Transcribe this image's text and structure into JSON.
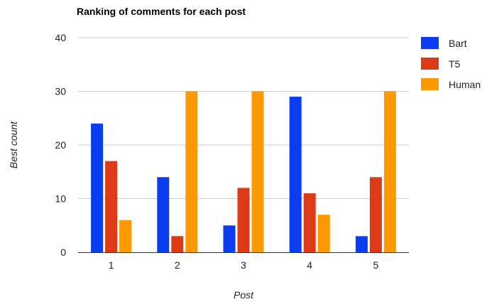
{
  "chart_data": {
    "type": "bar",
    "title": "Ranking of comments for each post",
    "xlabel": "Post",
    "ylabel": "Best count",
    "categories": [
      "1",
      "2",
      "3",
      "4",
      "5"
    ],
    "series": [
      {
        "name": "Bart",
        "color": "#0a3cf0",
        "values": [
          24,
          14,
          5,
          29,
          3
        ]
      },
      {
        "name": "T5",
        "color": "#dd3b17",
        "values": [
          17,
          3,
          12,
          11,
          14
        ]
      },
      {
        "name": "Human",
        "color": "#ff9900",
        "values": [
          6,
          30,
          30,
          7,
          30
        ]
      }
    ],
    "ylim": [
      0,
      40
    ],
    "yticks": [
      "0",
      "10",
      "20",
      "30",
      "40"
    ],
    "grid": true,
    "legend": "right"
  }
}
